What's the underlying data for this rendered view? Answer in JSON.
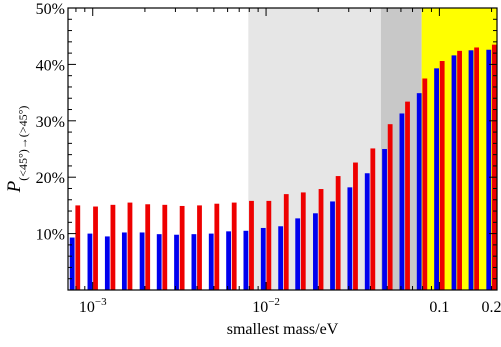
{
  "chart_data": {
    "type": "bar",
    "xscale": "log",
    "xlim": [
      0.00072,
      0.215
    ],
    "ylim": [
      0,
      50
    ],
    "xlabel": "smallest mass/eV",
    "ylabel": {
      "main": "P",
      "subscript": "(<45°)→(>45°)"
    },
    "x_ticks": [
      {
        "value": 0.001,
        "mantissa": "10",
        "exponent": "−3"
      },
      {
        "value": 0.01,
        "mantissa": "10",
        "exponent": "−2"
      },
      {
        "value": 0.1,
        "text": "0.1"
      },
      {
        "value": 0.2,
        "text": "0.2"
      }
    ],
    "y_ticks": [
      {
        "value": 10,
        "text": "10%"
      },
      {
        "value": 20,
        "text": "20%"
      },
      {
        "value": 30,
        "text": "30%"
      },
      {
        "value": 40,
        "text": "40%"
      },
      {
        "value": 50,
        "text": "50%"
      }
    ],
    "shaded_regions": [
      {
        "from": 0.0079,
        "to": 0.046,
        "color": "#e6e6e6"
      },
      {
        "from": 0.046,
        "to": 0.079,
        "color": "#c8c8c8"
      },
      {
        "from": 0.079,
        "to": 0.215,
        "color": "#ffff00"
      }
    ],
    "x": [
      0.00079,
      0.001,
      0.00126,
      0.00158,
      0.002,
      0.00251,
      0.00316,
      0.00398,
      0.00501,
      0.00631,
      0.00794,
      0.01,
      0.0126,
      0.0158,
      0.02,
      0.0251,
      0.0316,
      0.0398,
      0.0501,
      0.0631,
      0.0794,
      0.1,
      0.126,
      0.158,
      0.2
    ],
    "series": [
      {
        "color": "#0000ee",
        "values": [
          9.3,
          10.0,
          9.5,
          10.2,
          10.2,
          9.9,
          9.8,
          9.9,
          10.0,
          10.4,
          10.5,
          11.0,
          11.3,
          12.7,
          13.6,
          15.7,
          18.2,
          20.7,
          25.0,
          31.3,
          34.9,
          39.3,
          41.6,
          42.5,
          42.6
        ]
      },
      {
        "color": "#ee0000",
        "values": [
          15.0,
          14.8,
          15.1,
          15.5,
          15.2,
          15.1,
          14.9,
          15.0,
          15.3,
          15.5,
          15.8,
          15.8,
          17.0,
          17.3,
          17.9,
          20.2,
          22.6,
          25.1,
          29.4,
          33.4,
          37.5,
          40.6,
          42.4,
          43.0,
          43.5
        ]
      }
    ]
  }
}
